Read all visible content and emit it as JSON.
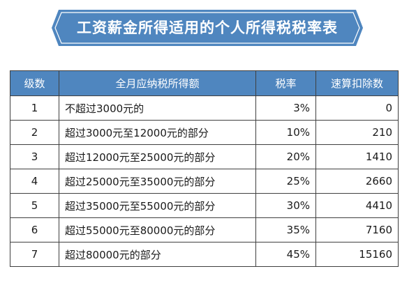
{
  "banner": {
    "title": "工资薪金所得适用的个人所得税税率表",
    "color": "#4f86bf"
  },
  "table": {
    "headers": [
      "级数",
      "全月应纳税所得额",
      "税率",
      "速算扣除数"
    ],
    "rows": [
      {
        "level": "1",
        "range": "不超过3000元的",
        "rate": "3%",
        "deduction": "0"
      },
      {
        "level": "2",
        "range": "超过3000元至12000元的部分",
        "rate": "10%",
        "deduction": "210"
      },
      {
        "level": "3",
        "range": "超过12000元至25000元的部分",
        "rate": "20%",
        "deduction": "1410"
      },
      {
        "level": "4",
        "range": "超过25000元至35000元的部分",
        "rate": "25%",
        "deduction": "2660"
      },
      {
        "level": "5",
        "range": "超过35000元至55000元的部分",
        "rate": "30%",
        "deduction": "4410"
      },
      {
        "level": "6",
        "range": "超过55000元至80000元的部分",
        "rate": "35%",
        "deduction": "7160"
      },
      {
        "level": "7",
        "range": "超过80000元的部分",
        "rate": "45%",
        "deduction": "15160"
      }
    ]
  }
}
